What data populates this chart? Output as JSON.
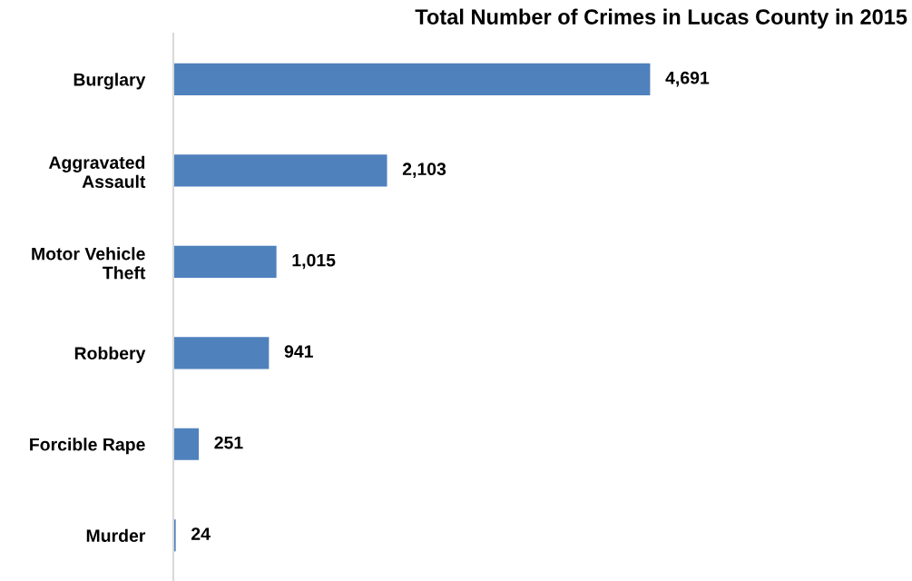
{
  "chart_data": {
    "type": "bar",
    "orientation": "horizontal",
    "title": "Total Number of Crimes in Lucas County in 2015",
    "categories": [
      "Burglary",
      "Aggravated\nAssault",
      "Motor Vehicle\nTheft",
      "Robbery",
      "Forcible Rape",
      "Murder"
    ],
    "values": [
      4691,
      2103,
      1015,
      941,
      251,
      24
    ],
    "value_labels": [
      "4,691",
      "2,103",
      "1,015",
      "941",
      "251",
      "24"
    ],
    "color": "#4f81bd",
    "tick_labels": "y",
    "grid": false,
    "legend": false
  }
}
